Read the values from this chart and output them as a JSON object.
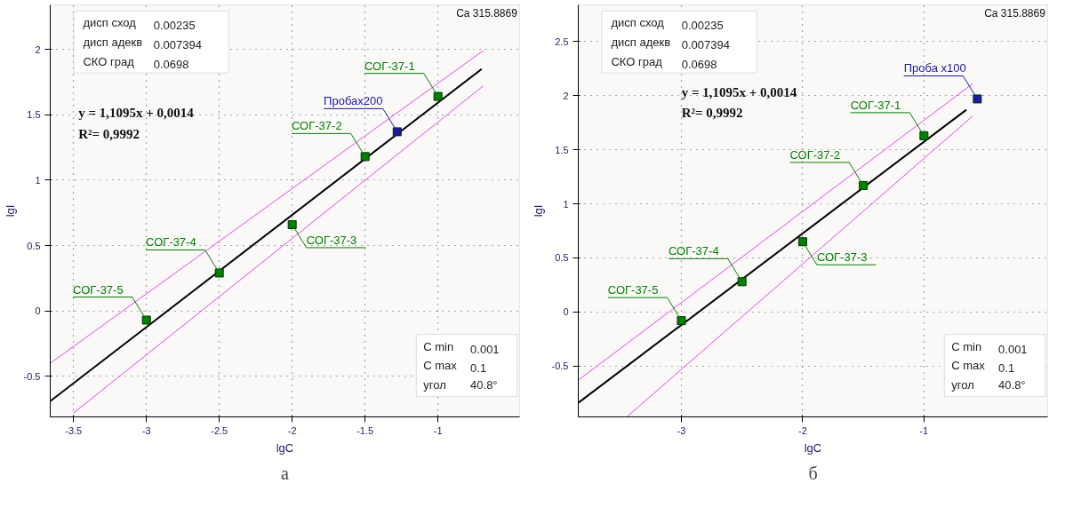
{
  "chart_data": [
    {
      "type": "scatter",
      "title": "а",
      "xlabel": "lgC",
      "ylabel": "lgI",
      "xlim": [
        -3.66,
        -0.44
      ],
      "ylim": [
        -0.81,
        2.34
      ],
      "xticks": [
        -3.5,
        -3,
        -2.5,
        -2,
        -1.5,
        -1
      ],
      "yticks": [
        -0.5,
        0,
        0.5,
        1,
        1.5,
        2
      ],
      "grid": true,
      "series": [
        {
          "type": "line",
          "color": "#000000",
          "line_style": "solid",
          "x": [
            -3.66,
            -0.7
          ],
          "values": [
            -0.69,
            1.85
          ]
        },
        {
          "type": "line",
          "color": "#ee44ee",
          "line_style": "solid",
          "x": [
            -3.66,
            -0.69
          ],
          "values": [
            -0.4,
            1.99
          ]
        },
        {
          "type": "line",
          "color": "#ee44ee",
          "line_style": "solid",
          "x": [
            -3.5,
            -0.69
          ],
          "values": [
            -0.78,
            1.72
          ]
        },
        {
          "color": "#008000",
          "marker": "square",
          "x": [
            -1,
            -1.5,
            -2,
            -2.5,
            -3
          ],
          "values": [
            1.64,
            1.18,
            0.66,
            0.29,
            -0.07
          ]
        },
        {
          "color": "#1a1aa0",
          "marker": "square",
          "x": [
            -1.28
          ],
          "values": [
            1.37
          ]
        }
      ],
      "annotations": [
        {
          "text": "СОГ-37-1",
          "x": -1,
          "y": 1.64
        },
        {
          "text": "СОГ-37-2",
          "x": -1.5,
          "y": 1.18
        },
        {
          "text": "СОГ-37-3",
          "x": -2,
          "y": 0.66
        },
        {
          "text": "СОГ-37-4",
          "x": -2.5,
          "y": 0.29
        },
        {
          "text": "СОГ-37-5",
          "x": -3,
          "y": -0.07
        },
        {
          "text": "Пробах200",
          "x": -1.28,
          "y": 1.37
        },
        "дисп сход 0.00235",
        "дисп адекв 0.007394",
        "СКО град 0.0698",
        "C min 0.001",
        "C max 0.1",
        "угол 40.8°",
        "y = 1,1095x + 0,0014",
        "R²= 0,9992",
        "Ca 315.8869"
      ]
    },
    {
      "type": "scatter",
      "title": "б",
      "xlabel": "lgC",
      "ylabel": "lgI",
      "xlim": [
        -3.85,
        0.02
      ],
      "ylim": [
        -0.97,
        2.84
      ],
      "xticks": [
        -3,
        -2,
        -1
      ],
      "yticks": [
        -0.5,
        0,
        0.5,
        1,
        1.5,
        2,
        2.5
      ],
      "grid": true,
      "series": [
        {
          "type": "line",
          "color": "#000000",
          "line_style": "solid",
          "x": [
            -3.85,
            -0.65
          ],
          "values": [
            -0.84,
            1.87
          ]
        },
        {
          "type": "line",
          "color": "#ee44ee",
          "line_style": "solid",
          "x": [
            -3.85,
            -0.6
          ],
          "values": [
            -0.63,
            2.11
          ]
        },
        {
          "type": "line",
          "color": "#ee44ee",
          "line_style": "solid",
          "x": [
            -3.45,
            -0.6
          ],
          "values": [
            -0.97,
            1.81
          ]
        },
        {
          "color": "#008000",
          "marker": "square",
          "x": [
            -1,
            -1.5,
            -2,
            -2.5,
            -3
          ],
          "values": [
            1.63,
            1.17,
            0.65,
            0.28,
            -0.08
          ]
        },
        {
          "color": "#1a1aa0",
          "marker": "square",
          "x": [
            -0.56
          ],
          "values": [
            1.97
          ]
        }
      ],
      "annotations": [
        {
          "text": "СОГ-37-1",
          "x": -1,
          "y": 1.63
        },
        {
          "text": "СОГ-37-2",
          "x": -1.5,
          "y": 1.17
        },
        {
          "text": "СОГ-37-3",
          "x": -2,
          "y": 0.65
        },
        {
          "text": "СОГ-37-4",
          "x": -2.5,
          "y": 0.28
        },
        {
          "text": "СОГ-37-5",
          "x": -3,
          "y": -0.08
        },
        {
          "text": "Проба x100",
          "x": -0.56,
          "y": 1.97
        },
        "дисп сход 0.00235",
        "дисп адекв 0.007394",
        "СКО град 0.0698",
        "C min 0.001",
        "C max 0.1",
        "угол 40.8°",
        "y = 1,1095x + 0,0014",
        "R²= 0,9992",
        "Ca 315.8869"
      ]
    }
  ]
}
